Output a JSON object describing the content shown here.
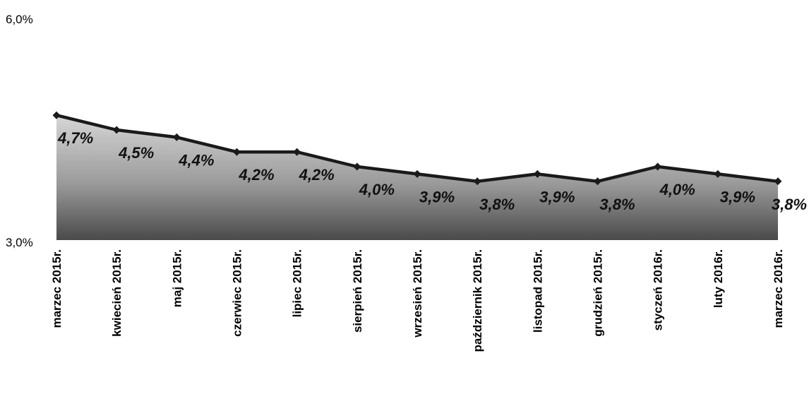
{
  "chart_data": {
    "type": "area",
    "title": "",
    "xlabel": "",
    "ylabel": "",
    "ylim": [
      3.0,
      6.0
    ],
    "y_ticks": [
      "3,0%",
      "6,0%"
    ],
    "grid": false,
    "legend": "none",
    "categories": [
      "marzec 2015r.",
      "kwiecień 2015r.",
      "maj 2015r.",
      "czerwiec 2015r.",
      "lipiec 2015r.",
      "sierpień 2015r.",
      "wrzesień 2015r.",
      "październik 2015r.",
      "listopad 2015r.",
      "grudzień 2015r.",
      "styczeń 2016r.",
      "luty 2016r.",
      "marzec 2016r."
    ],
    "series": [
      {
        "values": [
          4.7,
          4.5,
          4.4,
          4.2,
          4.2,
          4.0,
          3.9,
          3.8,
          3.9,
          3.8,
          4.0,
          3.9,
          3.8
        ],
        "labels": [
          "4,7%",
          "4,5%",
          "4,4%",
          "4,2%",
          "4,2%",
          "4,0%",
          "3,9%",
          "3,8%",
          "3,9%",
          "3,8%",
          "4,0%",
          "3,9%",
          "3,8%"
        ]
      }
    ],
    "colors": {
      "line": "#1a1a1a",
      "area_top": "#d6d6d6",
      "area_bottom": "#4a4a4a"
    }
  }
}
